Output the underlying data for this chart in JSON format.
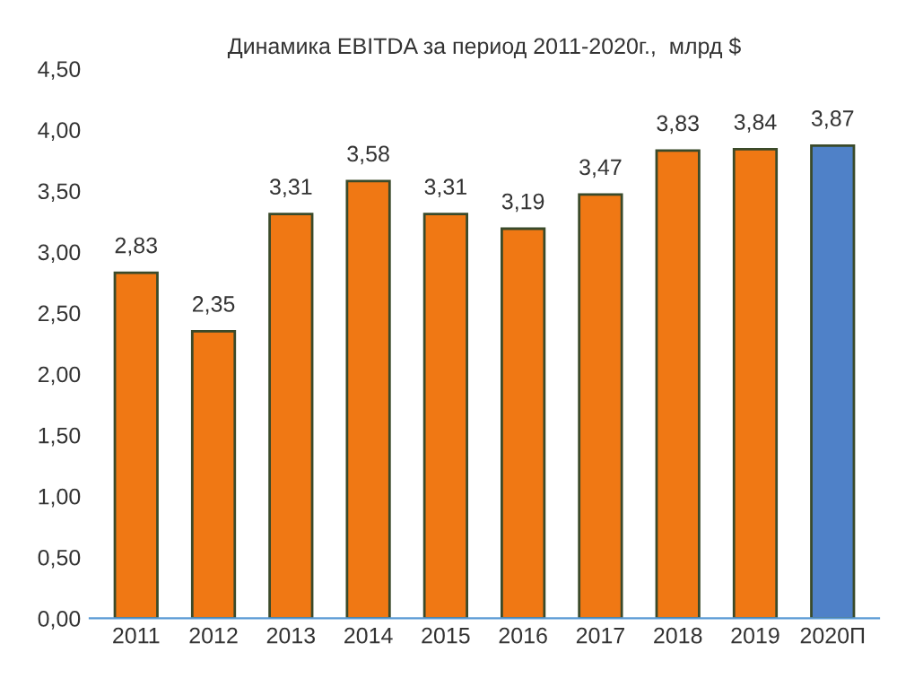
{
  "chart_data": {
    "type": "bar",
    "title": "Динамика EBITDA за период 2011-2020г.,  млрд $",
    "categories": [
      "2011",
      "2012",
      "2013",
      "2014",
      "2015",
      "2016",
      "2017",
      "2018",
      "2019",
      "2020П"
    ],
    "values": [
      2.83,
      2.35,
      3.31,
      3.58,
      3.31,
      3.19,
      3.47,
      3.83,
      3.84,
      3.87
    ],
    "value_labels": [
      "2,83",
      "2,35",
      "3,31",
      "3,58",
      "3,31",
      "3,19",
      "3,47",
      "3,83",
      "3,84",
      "3,87"
    ],
    "colors": [
      "#f07814",
      "#f07814",
      "#f07814",
      "#f07814",
      "#f07814",
      "#f07814",
      "#f07814",
      "#f07814",
      "#f07814",
      "#4f81c8"
    ],
    "ylim": [
      0,
      4.5
    ],
    "yticks": [
      {
        "value": 0,
        "label": "0,00"
      },
      {
        "value": 0.5,
        "label": "0,50"
      },
      {
        "value": 1,
        "label": "1,00"
      },
      {
        "value": 1.5,
        "label": "1,50"
      },
      {
        "value": 2,
        "label": "2,00"
      },
      {
        "value": 2.5,
        "label": "2,50"
      },
      {
        "value": 3,
        "label": "3,00"
      },
      {
        "value": 3.5,
        "label": "3,50"
      },
      {
        "value": 4,
        "label": "4,00"
      },
      {
        "value": 4.5,
        "label": "4,50"
      }
    ],
    "grid": false,
    "legend": false
  }
}
